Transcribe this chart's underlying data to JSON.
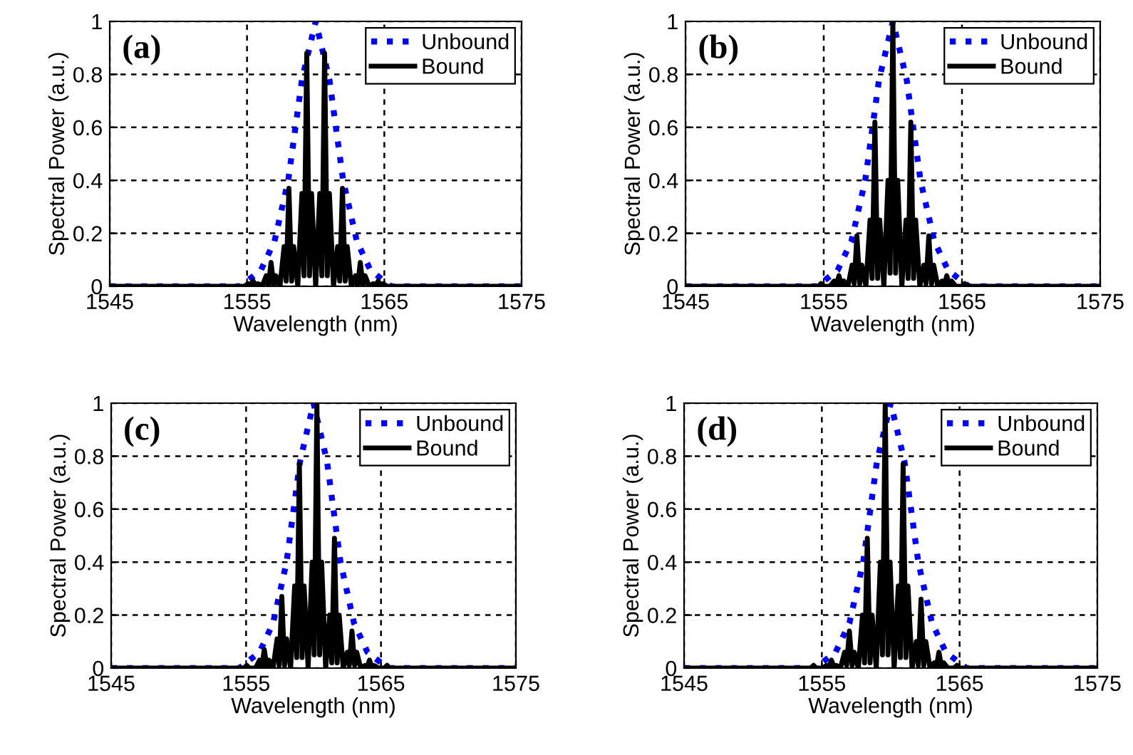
{
  "chart_data": [
    {
      "type": "line",
      "annotations": [
        "(a)"
      ],
      "xlabel": "Wavelength (nm)",
      "ylabel": "Spectral Power (a.u.)",
      "xlim": [
        1545,
        1575
      ],
      "ylim": [
        0,
        1
      ],
      "xticks": [
        1545,
        1555,
        1565,
        1575
      ],
      "yticks": [
        0,
        0.2,
        0.4,
        0.6,
        0.8,
        1
      ],
      "grid": true,
      "legend": "top right",
      "series": [
        {
          "name": "Unbound",
          "color": "#0000ff",
          "line_style": "dotted",
          "x": [
            1545,
            1554.5,
            1555,
            1556,
            1557,
            1558,
            1559,
            1560,
            1561,
            1562,
            1563,
            1564,
            1565,
            1565.5,
            1575
          ],
          "values": [
            0,
            0,
            0.02,
            0.06,
            0.17,
            0.4,
            0.78,
            1,
            0.78,
            0.4,
            0.17,
            0.06,
            0.02,
            0,
            0
          ]
        },
        {
          "name": "Bound",
          "color": "#000000",
          "line_style": "solid",
          "x": [
            1545,
            1554.8,
            1555.1,
            1555.25,
            1555.45,
            1555.65,
            1555.8,
            1556.1,
            1556.4,
            1556.55,
            1556.75,
            1556.95,
            1557.1,
            1557.4,
            1557.7,
            1557.85,
            1558.05,
            1558.25,
            1558.4,
            1558.7,
            1559.0,
            1559.15,
            1559.35,
            1559.55,
            1559.7,
            1560.0,
            1560.3,
            1560.45,
            1560.65,
            1560.85,
            1561.0,
            1561.3,
            1561.6,
            1561.75,
            1561.95,
            1562.15,
            1562.3,
            1562.6,
            1562.9,
            1563.05,
            1563.25,
            1563.45,
            1563.6,
            1563.9,
            1564.2,
            1564.35,
            1564.55,
            1564.75,
            1564.9,
            1565.2,
            1575
          ],
          "values": [
            0,
            0,
            0.01,
            0,
            0.02,
            0,
            0.01,
            0,
            0.04,
            0,
            0.09,
            0,
            0.04,
            0,
            0.15,
            0.02,
            0.37,
            0.02,
            0.15,
            0,
            0.35,
            0.04,
            0.88,
            0.04,
            0.35,
            0,
            0.35,
            0.04,
            0.88,
            0.04,
            0.35,
            0,
            0.15,
            0.02,
            0.37,
            0.02,
            0.15,
            0,
            0.04,
            0,
            0.09,
            0,
            0.04,
            0,
            0.01,
            0,
            0.02,
            0,
            0.01,
            0,
            0
          ]
        }
      ]
    },
    {
      "type": "line",
      "annotations": [
        "(b)"
      ],
      "xlabel": "Wavelength (nm)",
      "ylabel": "Spectral Power (a.u.)",
      "xlim": [
        1545,
        1575
      ],
      "ylim": [
        0,
        1
      ],
      "xticks": [
        1545,
        1555,
        1565,
        1575
      ],
      "yticks": [
        0,
        0.2,
        0.4,
        0.6,
        0.8,
        1
      ],
      "grid": true,
      "legend": "top right",
      "series": [
        {
          "name": "Unbound",
          "color": "#0000ff",
          "line_style": "dotted",
          "x": [
            1545,
            1554.5,
            1555,
            1556,
            1557,
            1558,
            1559,
            1560,
            1561,
            1562,
            1563,
            1564,
            1565,
            1565.5,
            1575
          ],
          "values": [
            0,
            0,
            0.02,
            0.06,
            0.17,
            0.4,
            0.78,
            1,
            0.78,
            0.4,
            0.17,
            0.06,
            0.02,
            0,
            0
          ]
        },
        {
          "name": "Bound",
          "color": "#000000",
          "line_style": "solid",
          "x": [
            1545,
            1554.15,
            1554.45,
            1554.6,
            1554.8,
            1555.0,
            1555.15,
            1555.45,
            1555.75,
            1555.9,
            1556.1,
            1556.3,
            1556.45,
            1556.75,
            1557.05,
            1557.2,
            1557.4,
            1557.6,
            1557.75,
            1558.05,
            1558.35,
            1558.5,
            1558.7,
            1558.9,
            1559.05,
            1559.35,
            1559.65,
            1559.8,
            1560,
            1560.2,
            1560.35,
            1560.65,
            1560.95,
            1561.1,
            1561.3,
            1561.5,
            1561.65,
            1561.95,
            1562.25,
            1562.4,
            1562.6,
            1562.8,
            1562.95,
            1563.25,
            1563.55,
            1563.7,
            1563.9,
            1564.1,
            1564.25,
            1564.55,
            1564.85,
            1565.0,
            1565.2,
            1565.4,
            1565.55,
            1565.85,
            1575
          ],
          "values": [
            0,
            0,
            0,
            0,
            0.01,
            0,
            0,
            0,
            0.02,
            0,
            0.04,
            0,
            0.02,
            0,
            0.08,
            0.01,
            0.19,
            0.01,
            0.08,
            0,
            0.25,
            0.03,
            0.62,
            0.03,
            0.25,
            0,
            0.4,
            0.05,
            1,
            0.05,
            0.4,
            0,
            0.25,
            0.03,
            0.62,
            0.03,
            0.25,
            0,
            0.08,
            0.01,
            0.19,
            0.01,
            0.08,
            0,
            0.02,
            0,
            0.04,
            0,
            0.02,
            0,
            0,
            0,
            0.01,
            0,
            0,
            0,
            0
          ]
        }
      ]
    },
    {
      "type": "line",
      "annotations": [
        "(c)"
      ],
      "xlabel": "Wavelength (nm)",
      "ylabel": "Spectral Power (a.u.)",
      "xlim": [
        1545,
        1575
      ],
      "ylim": [
        0,
        1
      ],
      "xticks": [
        1545,
        1555,
        1565,
        1575
      ],
      "yticks": [
        0,
        0.2,
        0.4,
        0.6,
        0.8,
        1
      ],
      "grid": true,
      "legend": "top right",
      "series": [
        {
          "name": "Unbound",
          "color": "#0000ff",
          "line_style": "dotted",
          "x": [
            1545,
            1554.5,
            1555,
            1556,
            1557,
            1558,
            1559,
            1560,
            1561,
            1562,
            1563,
            1564,
            1565,
            1565.5,
            1575
          ],
          "values": [
            0,
            0,
            0.02,
            0.06,
            0.17,
            0.4,
            0.78,
            1,
            0.78,
            0.4,
            0.17,
            0.06,
            0.02,
            0,
            0
          ]
        },
        {
          "name": "Bound",
          "color": "#000000",
          "line_style": "solid",
          "x": [
            1545,
            1554.4,
            1554.7,
            1554.85,
            1555.05,
            1555.25,
            1555.4,
            1555.7,
            1556.0,
            1556.15,
            1556.35,
            1556.55,
            1556.7,
            1557.0,
            1557.3,
            1557.45,
            1557.65,
            1557.85,
            1558.0,
            1558.3,
            1558.6,
            1558.75,
            1558.95,
            1559.15,
            1559.3,
            1559.6,
            1559.9,
            1560.05,
            1560.25,
            1560.45,
            1560.6,
            1560.9,
            1561.2,
            1561.35,
            1561.55,
            1561.75,
            1561.9,
            1562.2,
            1562.5,
            1562.65,
            1562.85,
            1563.05,
            1563.2,
            1563.5,
            1563.8,
            1563.95,
            1564.15,
            1564.35,
            1564.5,
            1564.8,
            1565.1,
            1565.25,
            1565.45,
            1565.65,
            1565.8,
            1566.1,
            1575
          ],
          "values": [
            0,
            0,
            0,
            0,
            0.01,
            0,
            0,
            0,
            0.03,
            0,
            0.07,
            0,
            0.03,
            0,
            0.11,
            0.01,
            0.27,
            0.01,
            0.11,
            0,
            0.31,
            0.04,
            0.77,
            0.04,
            0.31,
            0,
            0.4,
            0.05,
            1,
            0.05,
            0.4,
            0,
            0.2,
            0.02,
            0.49,
            0.02,
            0.2,
            0,
            0.06,
            0.01,
            0.14,
            0.01,
            0.06,
            0,
            0.01,
            0,
            0.03,
            0,
            0.01,
            0,
            0,
            0,
            0.01,
            0,
            0,
            0,
            0
          ]
        }
      ]
    },
    {
      "type": "line",
      "annotations": [
        "(d)"
      ],
      "xlabel": "Wavelength (nm)",
      "ylabel": "Spectral Power (a.u.)",
      "xlim": [
        1545,
        1575
      ],
      "ylim": [
        0,
        1
      ],
      "xticks": [
        1545,
        1555,
        1565,
        1575
      ],
      "yticks": [
        0,
        0.2,
        0.4,
        0.6,
        0.8,
        1
      ],
      "grid": true,
      "legend": "top right",
      "series": [
        {
          "name": "Unbound",
          "color": "#0000ff",
          "line_style": "dotted",
          "x": [
            1545,
            1554.5,
            1555,
            1556,
            1557,
            1558,
            1559,
            1560,
            1561,
            1562,
            1563,
            1564,
            1565,
            1565.5,
            1575
          ],
          "values": [
            0,
            0,
            0.02,
            0.06,
            0.17,
            0.4,
            0.78,
            1,
            0.78,
            0.4,
            0.17,
            0.06,
            0.02,
            0,
            0
          ]
        },
        {
          "name": "Bound",
          "color": "#000000",
          "line_style": "solid",
          "x": [
            1545,
            1553.75,
            1554.05,
            1554.2,
            1554.4,
            1554.6,
            1554.75,
            1555.05,
            1555.35,
            1555.5,
            1555.7,
            1555.9,
            1556.05,
            1556.35,
            1556.65,
            1556.8,
            1557.0,
            1557.2,
            1557.35,
            1557.65,
            1557.95,
            1558.1,
            1558.3,
            1558.5,
            1558.65,
            1558.95,
            1559.25,
            1559.4,
            1559.6,
            1559.8,
            1559.95,
            1560.25,
            1560.55,
            1560.7,
            1560.9,
            1561.1,
            1561.25,
            1561.55,
            1561.85,
            1562.0,
            1562.2,
            1562.4,
            1562.55,
            1562.85,
            1563.15,
            1563.3,
            1563.5,
            1563.7,
            1563.85,
            1564.15,
            1564.45,
            1564.6,
            1564.8,
            1565.0,
            1565.15,
            1565.45,
            1575
          ],
          "values": [
            0,
            0,
            0,
            0,
            0.01,
            0,
            0,
            0,
            0.01,
            0,
            0.03,
            0,
            0.01,
            0,
            0.06,
            0.01,
            0.14,
            0.01,
            0.06,
            0,
            0.2,
            0.02,
            0.49,
            0.02,
            0.2,
            0,
            0.4,
            0.05,
            1,
            0.05,
            0.4,
            0,
            0.31,
            0.04,
            0.77,
            0.04,
            0.31,
            0,
            0.1,
            0.01,
            0.26,
            0.01,
            0.1,
            0,
            0.02,
            0,
            0.06,
            0,
            0.02,
            0,
            0,
            0,
            0.01,
            0,
            0,
            0,
            0
          ]
        }
      ]
    }
  ]
}
